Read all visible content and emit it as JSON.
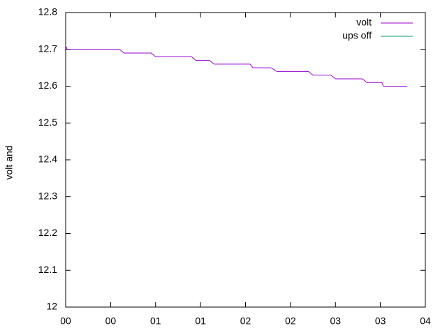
{
  "chart_data": {
    "type": "line",
    "ylabel": "volt and",
    "series": [
      {
        "name": "volt",
        "color": "#9400d3",
        "x": [
          0,
          1,
          36,
          39,
          57,
          60,
          84,
          87,
          96,
          99,
          123,
          125,
          137,
          141,
          162,
          165,
          177,
          180,
          198,
          201,
          211,
          212,
          228
        ],
        "values": [
          12.71,
          12.7,
          12.7,
          12.69,
          12.69,
          12.68,
          12.68,
          12.67,
          12.67,
          12.66,
          12.66,
          12.65,
          12.65,
          12.64,
          12.64,
          12.63,
          12.63,
          12.62,
          12.62,
          12.61,
          12.61,
          12.6,
          12.6
        ]
      },
      {
        "name": "ups off",
        "color": "#009e73",
        "x": [],
        "values": []
      }
    ],
    "xlim": [
      0,
      240
    ],
    "xticks": [
      {
        "value": 0,
        "label": "00"
      },
      {
        "value": 30,
        "label": "00"
      },
      {
        "value": 60,
        "label": "01"
      },
      {
        "value": 90,
        "label": "01"
      },
      {
        "value": 120,
        "label": "02"
      },
      {
        "value": 150,
        "label": "02"
      },
      {
        "value": 180,
        "label": "03"
      },
      {
        "value": 210,
        "label": "03"
      },
      {
        "value": 240,
        "label": "04"
      }
    ],
    "ylim": [
      12,
      12.8
    ],
    "yticks": [
      12,
      12.1,
      12.2,
      12.3,
      12.4,
      12.5,
      12.6,
      12.7,
      12.8
    ],
    "legend": "top-right",
    "grid": false
  }
}
